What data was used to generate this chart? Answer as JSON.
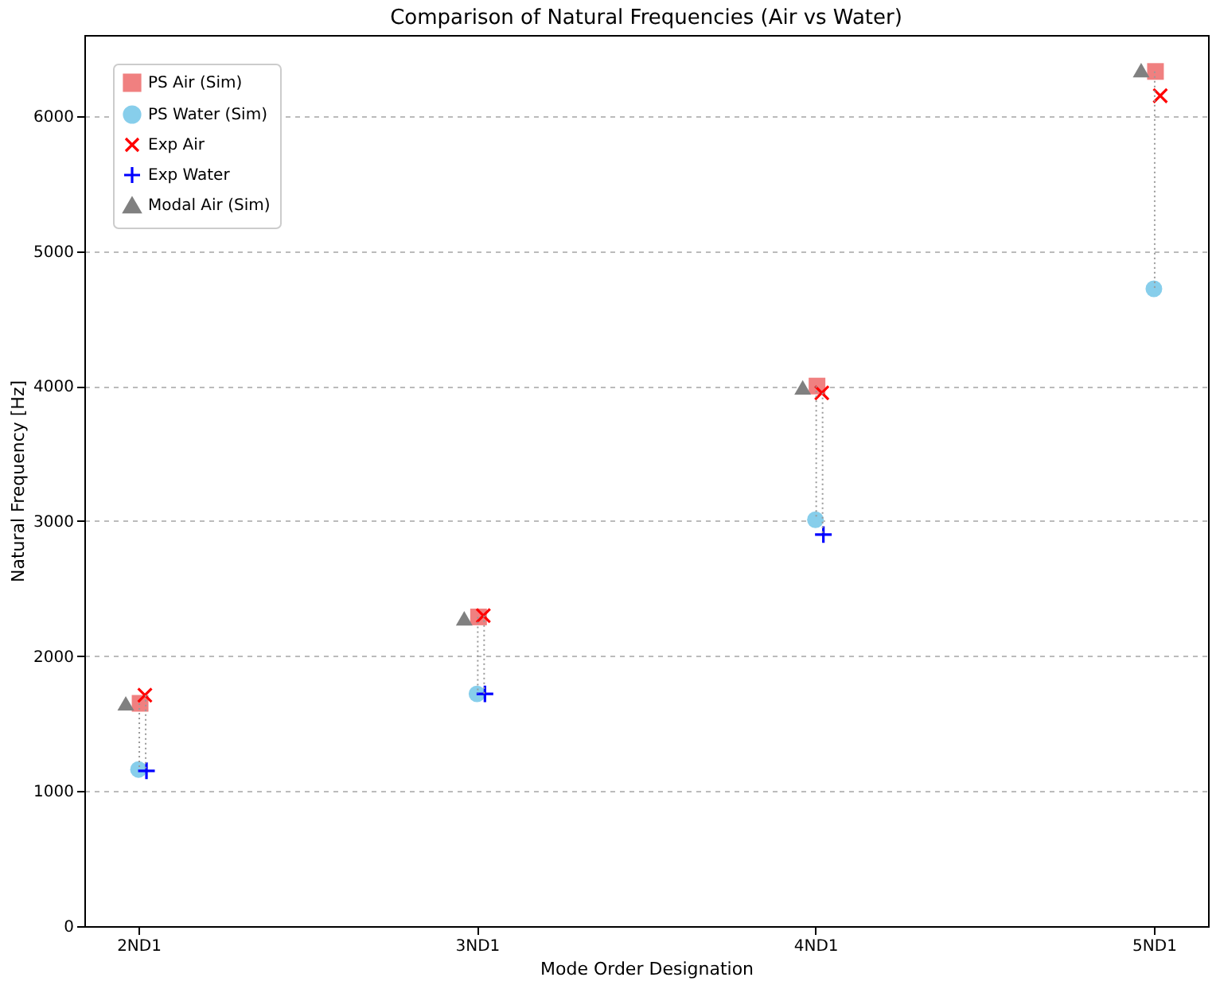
{
  "chart_data": {
    "type": "scatter",
    "title": "Comparison of Natural Frequencies (Air vs Water)",
    "xlabel": "Mode Order Designation",
    "ylabel": "Natural Frequency [Hz]",
    "categories": [
      "2ND1",
      "3ND1",
      "4ND1",
      "5ND1"
    ],
    "series": [
      {
        "name": "PS Air (Sim)",
        "color": "#f08080",
        "marker": "square",
        "values": [
          1650,
          2290,
          4000,
          6330
        ]
      },
      {
        "name": "PS Water (Sim)",
        "color": "#87ceeb",
        "marker": "circle",
        "values": [
          1160,
          1720,
          3010,
          4720
        ]
      },
      {
        "name": "Exp Air",
        "color": "#ff0000",
        "marker": "x",
        "values": [
          1710,
          2300,
          3950,
          6150
        ]
      },
      {
        "name": "Exp Water",
        "color": "#0000ff",
        "marker": "cross",
        "values": [
          1150,
          1720,
          2900,
          null
        ]
      },
      {
        "name": "Modal Air (Sim)",
        "color": "#808080",
        "marker": "triangle",
        "values": [
          1650,
          2280,
          3990,
          6340
        ]
      }
    ],
    "ylim": [
      0,
      6600
    ],
    "yticks": [
      0,
      1000,
      2000,
      3000,
      4000,
      5000,
      6000
    ],
    "grid": "y",
    "legend": "top left"
  }
}
